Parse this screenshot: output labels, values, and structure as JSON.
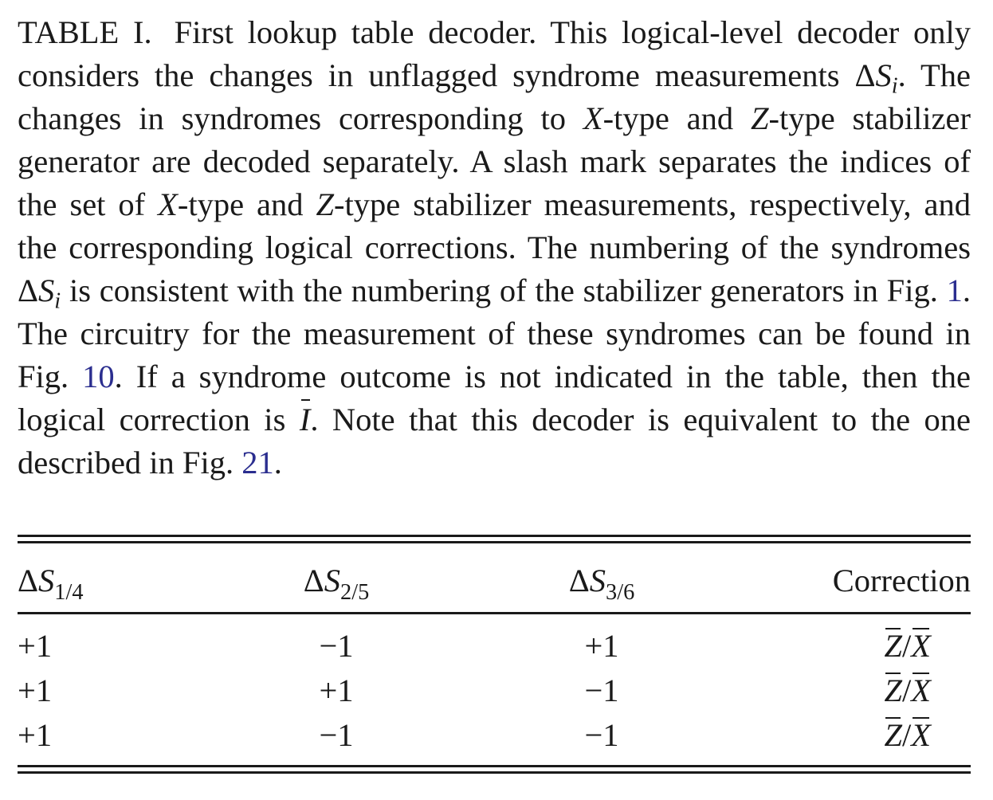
{
  "caption": {
    "label": "TABLE I.",
    "p1": "First lookup table decoder. This logical-level decoder only considers the changes in unflagged syndrome measurements ",
    "delta": "Δ",
    "S": "S",
    "i": "i",
    "p2": ". The changes in syndromes corresponding to ",
    "X": "X",
    "p3": "-type and ",
    "Z": "Z",
    "p4": "-type stabilizer generator are decoded separately. A slash mark separates the indices of the set of ",
    "p5": "-type and ",
    "p6": "-type stabilizer measurements, respectively, and the corresponding logical corrections. The numbering of the syndromes ",
    "p7": " is consistent with the numbering of the stabilizer generators in Fig. ",
    "ref1": "1",
    "p8": ". The circuitry for the measurement of these syndromes can be found in Fig. ",
    "ref2": "10",
    "p9": ". If a syndrome outcome is not indicated in the table, then the logical correction is ",
    "I": "I",
    "p10": ". Note that this decoder is equivalent to the one described in Fig. ",
    "ref3": "21",
    "p11": "."
  },
  "table": {
    "headers": [
      {
        "delta": "Δ",
        "S": "S",
        "sub": "1/4"
      },
      {
        "delta": "Δ",
        "S": "S",
        "sub": "2/5"
      },
      {
        "delta": "Δ",
        "S": "S",
        "sub": "3/6"
      },
      {
        "text": "Correction"
      }
    ],
    "rows": [
      {
        "s14": "+1",
        "s25": "−1",
        "s36": "+1",
        "corr": {
          "a": "Z",
          "slash": "/",
          "b": "X"
        }
      },
      {
        "s14": "+1",
        "s25": "+1",
        "s36": "−1",
        "corr": {
          "a": "Z",
          "slash": "/",
          "b": "X"
        }
      },
      {
        "s14": "+1",
        "s25": "−1",
        "s36": "−1",
        "corr": {
          "a": "Z",
          "slash": "/",
          "b": "X"
        }
      }
    ]
  }
}
